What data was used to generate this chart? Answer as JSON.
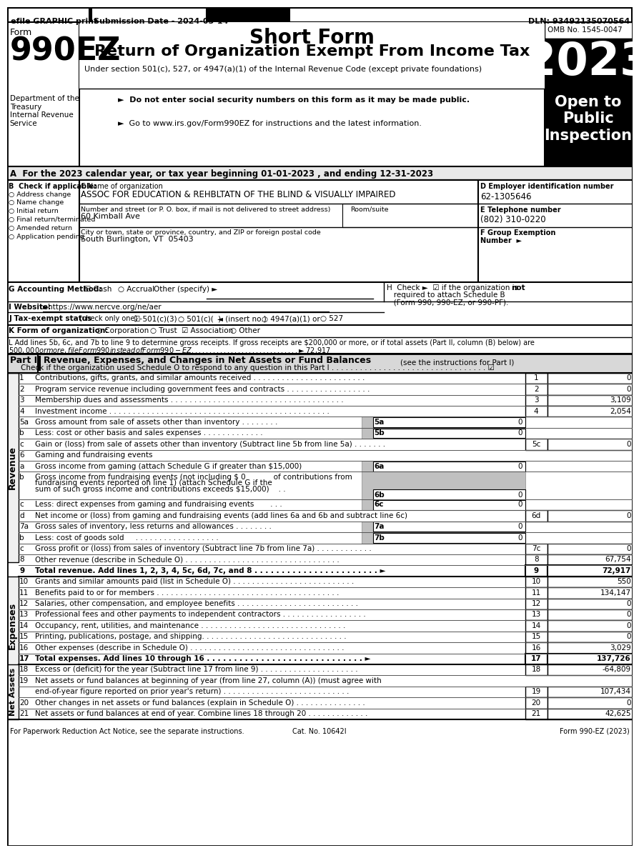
{
  "header_bar": {
    "efile_text": "efile GRAPHIC print",
    "submission_text": "Submission Date - 2024-05-14",
    "dln_text": "DLN: 93492135070564"
  },
  "form_title": "Short Form",
  "form_subtitle": "Return of Organization Exempt From Income Tax",
  "form_number": "990EZ",
  "form_label": "Form",
  "year": "2023",
  "omb": "OMB No. 1545-0047",
  "open_to_public": "Open to\nPublic\nInspection",
  "under_section": "Under section 501(c), 527, or 4947(a)(1) of the Internal Revenue Code (except private foundations)",
  "bullet1": "►  Do not enter social security numbers on this form as it may be made public.",
  "bullet2": "►  Go to www.irs.gov/Form990EZ for instructions and the latest information.",
  "dept_text": "Department of the\nTreasury\nInternal Revenue\nService",
  "section_a": "A  For the 2023 calendar year, or tax year beginning 01-01-2023 , and ending 12-31-2023",
  "section_b_label": "B  Check if applicable:",
  "checkboxes_b": [
    "Address change",
    "Name change",
    "Initial return",
    "Final return/terminated",
    "Amended return",
    "Application pending"
  ],
  "org_name": "ASSOC FOR EDUCATION & REHBLTATN OF THE BLIND & VISUALLY IMPAIRED",
  "address_label": "Number and street (or P. O. box, if mail is not delivered to street address)",
  "room_suite": "Room/suite",
  "address": "60 Kimball Ave",
  "city_label": "City or town, state or province, country, and ZIP or foreign postal code",
  "city": "South Burlington, VT  05403",
  "ein": "62-1305646",
  "phone": "(802) 310-0220",
  "footer_left": "For Paperwork Reduction Act Notice, see the separate instructions.",
  "footer_cat": "Cat. No. 10642I",
  "footer_right": "Form 990-EZ (2023)"
}
